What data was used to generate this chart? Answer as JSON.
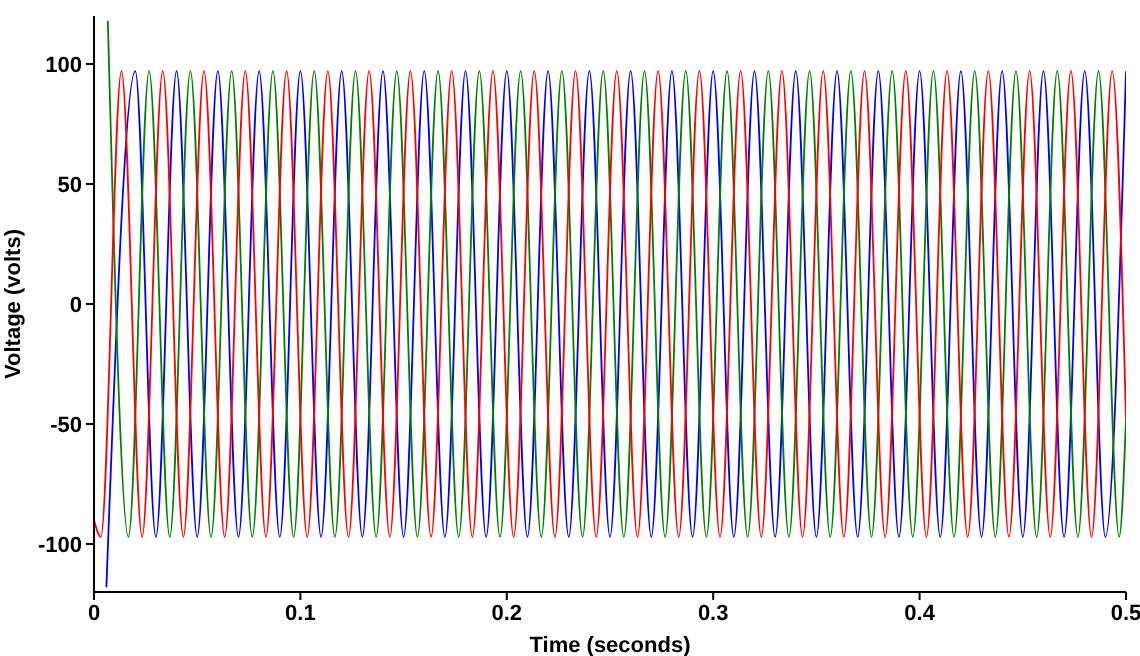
{
  "chart_data": {
    "type": "line",
    "xlabel": "Time (seconds)",
    "ylabel": "Voltage (volts)",
    "xlim": [
      0,
      0.5
    ],
    "xticks": [
      0,
      0.1,
      0.2,
      0.3,
      0.4,
      0.5
    ],
    "ylim": [
      -120,
      120
    ],
    "yticks": [
      -100,
      -50,
      0,
      50,
      100
    ],
    "grid": false,
    "legend": false,
    "marker": "none",
    "line_style": "solid",
    "series": [
      {
        "color": "#0000ff",
        "x": [
          0.006,
          0.02,
          0.03,
          0.04,
          0.05,
          0.06,
          0.07,
          0.08,
          0.09,
          0.1,
          0.11,
          0.12,
          0.13,
          0.14,
          0.15,
          0.16,
          0.17,
          0.18,
          0.19,
          0.2,
          0.21,
          0.22,
          0.23,
          0.24,
          0.25,
          0.26,
          0.27,
          0.28,
          0.29,
          0.3,
          0.31,
          0.32,
          0.33,
          0.34,
          0.35,
          0.36,
          0.37,
          0.38,
          0.39,
          0.4,
          0.41,
          0.42,
          0.43,
          0.44,
          0.45,
          0.46,
          0.47,
          0.48,
          0.49,
          0.5
        ],
        "values": [
          -118,
          97,
          -97,
          97,
          -97,
          97,
          -97,
          97,
          -97,
          97,
          -97,
          97,
          -97,
          97,
          -97,
          97,
          -97,
          97,
          -97,
          97,
          -97,
          97,
          -97,
          97,
          -97,
          97,
          -97,
          97,
          -97,
          97,
          -97,
          97,
          -97,
          97,
          -97,
          97,
          -97,
          97,
          -97,
          97,
          -97,
          97,
          -97,
          97,
          -97,
          97,
          -97,
          97,
          -97,
          97
        ]
      },
      {
        "color": "#008000",
        "x": [
          0.0067,
          0.0167,
          0.0267,
          0.0367,
          0.0467,
          0.0567,
          0.0667,
          0.0767,
          0.0867,
          0.0967,
          0.1067,
          0.1167,
          0.1267,
          0.1367,
          0.1467,
          0.1567,
          0.1667,
          0.1767,
          0.1867,
          0.1967,
          0.2067,
          0.2167,
          0.2267,
          0.2367,
          0.2467,
          0.2567,
          0.2667,
          0.2767,
          0.2867,
          0.2967,
          0.3067,
          0.3167,
          0.3267,
          0.3367,
          0.3467,
          0.3567,
          0.3667,
          0.3767,
          0.3867,
          0.3967,
          0.4067,
          0.4167,
          0.4267,
          0.4367,
          0.4467,
          0.4567,
          0.4667,
          0.4767,
          0.4867,
          0.4967,
          0.5
        ],
        "values": [
          118,
          -97,
          97,
          -97,
          97,
          -97,
          97,
          -97,
          97,
          -97,
          97,
          -97,
          97,
          -97,
          97,
          -97,
          97,
          -97,
          97,
          -97,
          97,
          -97,
          97,
          -97,
          97,
          -97,
          97,
          -97,
          97,
          -97,
          97,
          -97,
          97,
          -97,
          97,
          -97,
          97,
          -97,
          97,
          -97,
          97,
          -97,
          97,
          -97,
          97,
          -97,
          97,
          -97,
          97,
          -97,
          -48
        ]
      },
      {
        "color": "#ff0000",
        "x": [
          0,
          0.0033,
          0.0133,
          0.0233,
          0.0333,
          0.0433,
          0.0533,
          0.0633,
          0.0733,
          0.0833,
          0.0933,
          0.1033,
          0.1133,
          0.1233,
          0.1333,
          0.1433,
          0.1533,
          0.1633,
          0.1733,
          0.1833,
          0.1933,
          0.2033,
          0.2133,
          0.2233,
          0.2333,
          0.2433,
          0.2533,
          0.2633,
          0.2733,
          0.2833,
          0.2933,
          0.3033,
          0.3133,
          0.3233,
          0.3333,
          0.3433,
          0.3533,
          0.3633,
          0.3733,
          0.3833,
          0.3933,
          0.4033,
          0.4133,
          0.4233,
          0.4333,
          0.4433,
          0.4533,
          0.4633,
          0.4733,
          0.4833,
          0.4933,
          0.5
        ],
        "values": [
          -90,
          -97,
          97,
          -97,
          97,
          -97,
          97,
          -97,
          97,
          -97,
          97,
          -97,
          97,
          -97,
          97,
          -97,
          97,
          -97,
          97,
          -97,
          97,
          -97,
          97,
          -97,
          97,
          -97,
          97,
          -97,
          97,
          -97,
          97,
          -97,
          97,
          -97,
          97,
          -97,
          97,
          -97,
          97,
          -97,
          97,
          -97,
          97,
          -97,
          97,
          -97,
          97,
          -97,
          97,
          -97,
          97,
          -48
        ]
      }
    ]
  }
}
